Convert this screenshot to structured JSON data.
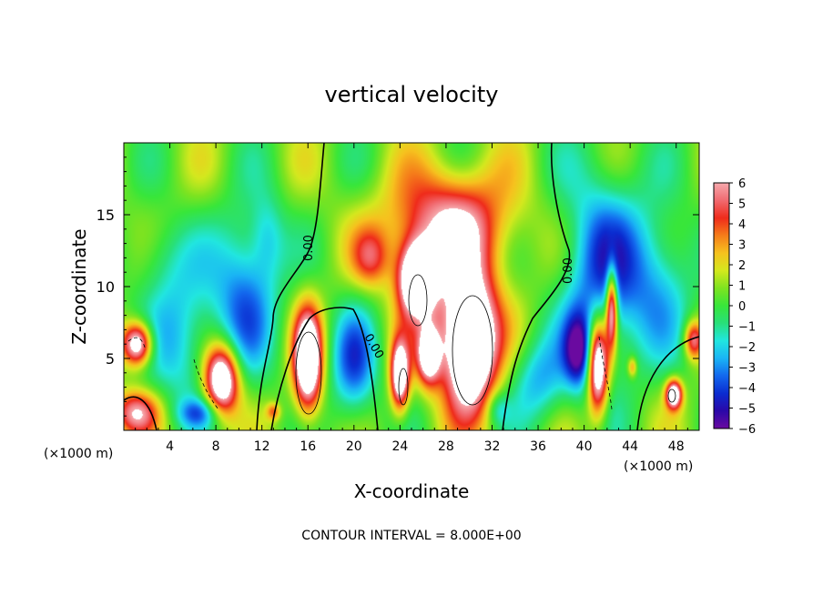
{
  "chart_data": {
    "type": "heatmap",
    "title": "vertical velocity",
    "xlabel": "X-coordinate",
    "ylabel": "Z-coordinate",
    "x_unit_left": "(×1000 m)",
    "x_unit_right": "(×1000 m)",
    "footer": "CONTOUR INTERVAL = 8.000E+00",
    "xlim": [
      0,
      50
    ],
    "ylim": [
      0,
      20
    ],
    "x_ticks": [
      "4",
      "8",
      "12",
      "16",
      "20",
      "24",
      "28",
      "32",
      "36",
      "40",
      "44",
      "48"
    ],
    "x_tick_values": [
      4,
      8,
      12,
      16,
      20,
      24,
      28,
      32,
      36,
      40,
      44,
      48
    ],
    "y_ticks": [
      "5",
      "10",
      "15"
    ],
    "y_tick_values": [
      5,
      10,
      15
    ],
    "colorbar": {
      "min": -6,
      "max": 6,
      "labels": [
        "6",
        "5",
        "4",
        "3",
        "2",
        "1",
        "0",
        "−1",
        "−2",
        "−3",
        "−4",
        "−5",
        "−6"
      ],
      "colors": [
        "#6a0aa0",
        "#2a08a8",
        "#0b2cd0",
        "#1368ee",
        "#1ab4f5",
        "#21e6e0",
        "#28e07a",
        "#38e63a",
        "#7ee320",
        "#d4e81e",
        "#f6c21e",
        "#f57d1a",
        "#ef2b1b",
        "#f16a70",
        "#f6a9ad"
      ]
    },
    "contour_labels": [
      "0.00",
      "0.00",
      "0.00"
    ],
    "features": [
      {
        "name": "updraft-core",
        "x": 16.0,
        "z": 4.8,
        "rx": 1.2,
        "rz": 3.5,
        "w": 9
      },
      {
        "name": "updraft-core",
        "x": 30.0,
        "z": 6.0,
        "rx": 2.3,
        "rz": 4.5,
        "w": 11
      },
      {
        "name": "updraft-core",
        "x": 25.5,
        "z": 10.5,
        "rx": 1.6,
        "rz": 2.5,
        "w": 10
      },
      {
        "name": "updraft-core",
        "x": 24.0,
        "z": 3.8,
        "rx": 0.8,
        "rz": 2.4,
        "w": 8
      },
      {
        "name": "updraft-core",
        "x": 26.5,
        "z": 5.2,
        "rx": 1.0,
        "rz": 2.0,
        "w": 7
      },
      {
        "name": "updraft-core",
        "x": 8.5,
        "z": 3.5,
        "rx": 1.5,
        "rz": 2.4,
        "w": 9
      },
      {
        "name": "updraft-core",
        "x": 1.2,
        "z": 6.0,
        "rx": 1.3,
        "rz": 1.5,
        "w": 8
      },
      {
        "name": "updraft-core",
        "x": 41.2,
        "z": 4.5,
        "rx": 0.9,
        "rz": 3.3,
        "w": 9
      },
      {
        "name": "updraft-core",
        "x": 42.4,
        "z": 8.6,
        "rx": 0.5,
        "rz": 2.8,
        "w": 8
      },
      {
        "name": "updraft-core",
        "x": 47.8,
        "z": 2.5,
        "rx": 0.7,
        "rz": 1.0,
        "w": 8
      },
      {
        "name": "updraft-weak",
        "x": 28.0,
        "z": 14.5,
        "rx": 5.5,
        "rz": 3.5,
        "w": 4
      },
      {
        "name": "updraft-weak",
        "x": 21.5,
        "z": 12.0,
        "rx": 1.6,
        "rz": 2.0,
        "w": 3
      },
      {
        "name": "updraft-weak",
        "x": 29.0,
        "z": 12.0,
        "rx": 4.5,
        "rz": 6.0,
        "w": 2
      },
      {
        "name": "updraft-weak",
        "x": 1.0,
        "z": 1.2,
        "rx": 2.0,
        "rz": 1.5,
        "w": 5
      },
      {
        "name": "updraft-weak",
        "x": 49.5,
        "z": 6.3,
        "rx": 0.8,
        "rz": 1.3,
        "w": 5
      },
      {
        "name": "updraft-weak",
        "x": 44.2,
        "z": 4.4,
        "rx": 0.4,
        "rz": 0.7,
        "w": 3
      },
      {
        "name": "updraft-weak",
        "x": 13.0,
        "z": 1.3,
        "rx": 0.6,
        "rz": 0.6,
        "w": 3
      },
      {
        "name": "downdraft",
        "x": 10.5,
        "z": 9.5,
        "rx": 2.8,
        "rz": 5.5,
        "w": -4
      },
      {
        "name": "downdraft",
        "x": 5.0,
        "z": 6.5,
        "rx": 3.0,
        "rz": 5.0,
        "w": -3
      },
      {
        "name": "downdraft",
        "x": 20.0,
        "z": 4.5,
        "rx": 2.0,
        "rz": 4.0,
        "w": -4
      },
      {
        "name": "downdraft",
        "x": 41.5,
        "z": 11.0,
        "rx": 3.5,
        "rz": 7.0,
        "w": -4.5
      },
      {
        "name": "downdraft",
        "x": 46.5,
        "z": 10.5,
        "rx": 3.0,
        "rz": 5.0,
        "w": -3
      },
      {
        "name": "downdraft",
        "x": 36.0,
        "z": 3.5,
        "rx": 2.5,
        "rz": 3.0,
        "w": -3
      },
      {
        "name": "downdraft",
        "x": 12.5,
        "z": 13.5,
        "rx": 1.5,
        "rz": 3.0,
        "w": -2
      },
      {
        "name": "downdraft",
        "x": 3.0,
        "z": 12.0,
        "rx": 2.5,
        "rz": 3.0,
        "w": -1.5
      },
      {
        "name": "downdraft",
        "x": 6.5,
        "z": 1.2,
        "rx": 1.8,
        "rz": 1.0,
        "w": -3
      },
      {
        "name": "downdraft",
        "x": 32.5,
        "z": 1.5,
        "rx": 1.0,
        "rz": 1.2,
        "w": -2
      },
      {
        "name": "downdraft",
        "x": 39.5,
        "z": 5.5,
        "rx": 1.2,
        "rz": 2.5,
        "w": -5
      }
    ]
  }
}
